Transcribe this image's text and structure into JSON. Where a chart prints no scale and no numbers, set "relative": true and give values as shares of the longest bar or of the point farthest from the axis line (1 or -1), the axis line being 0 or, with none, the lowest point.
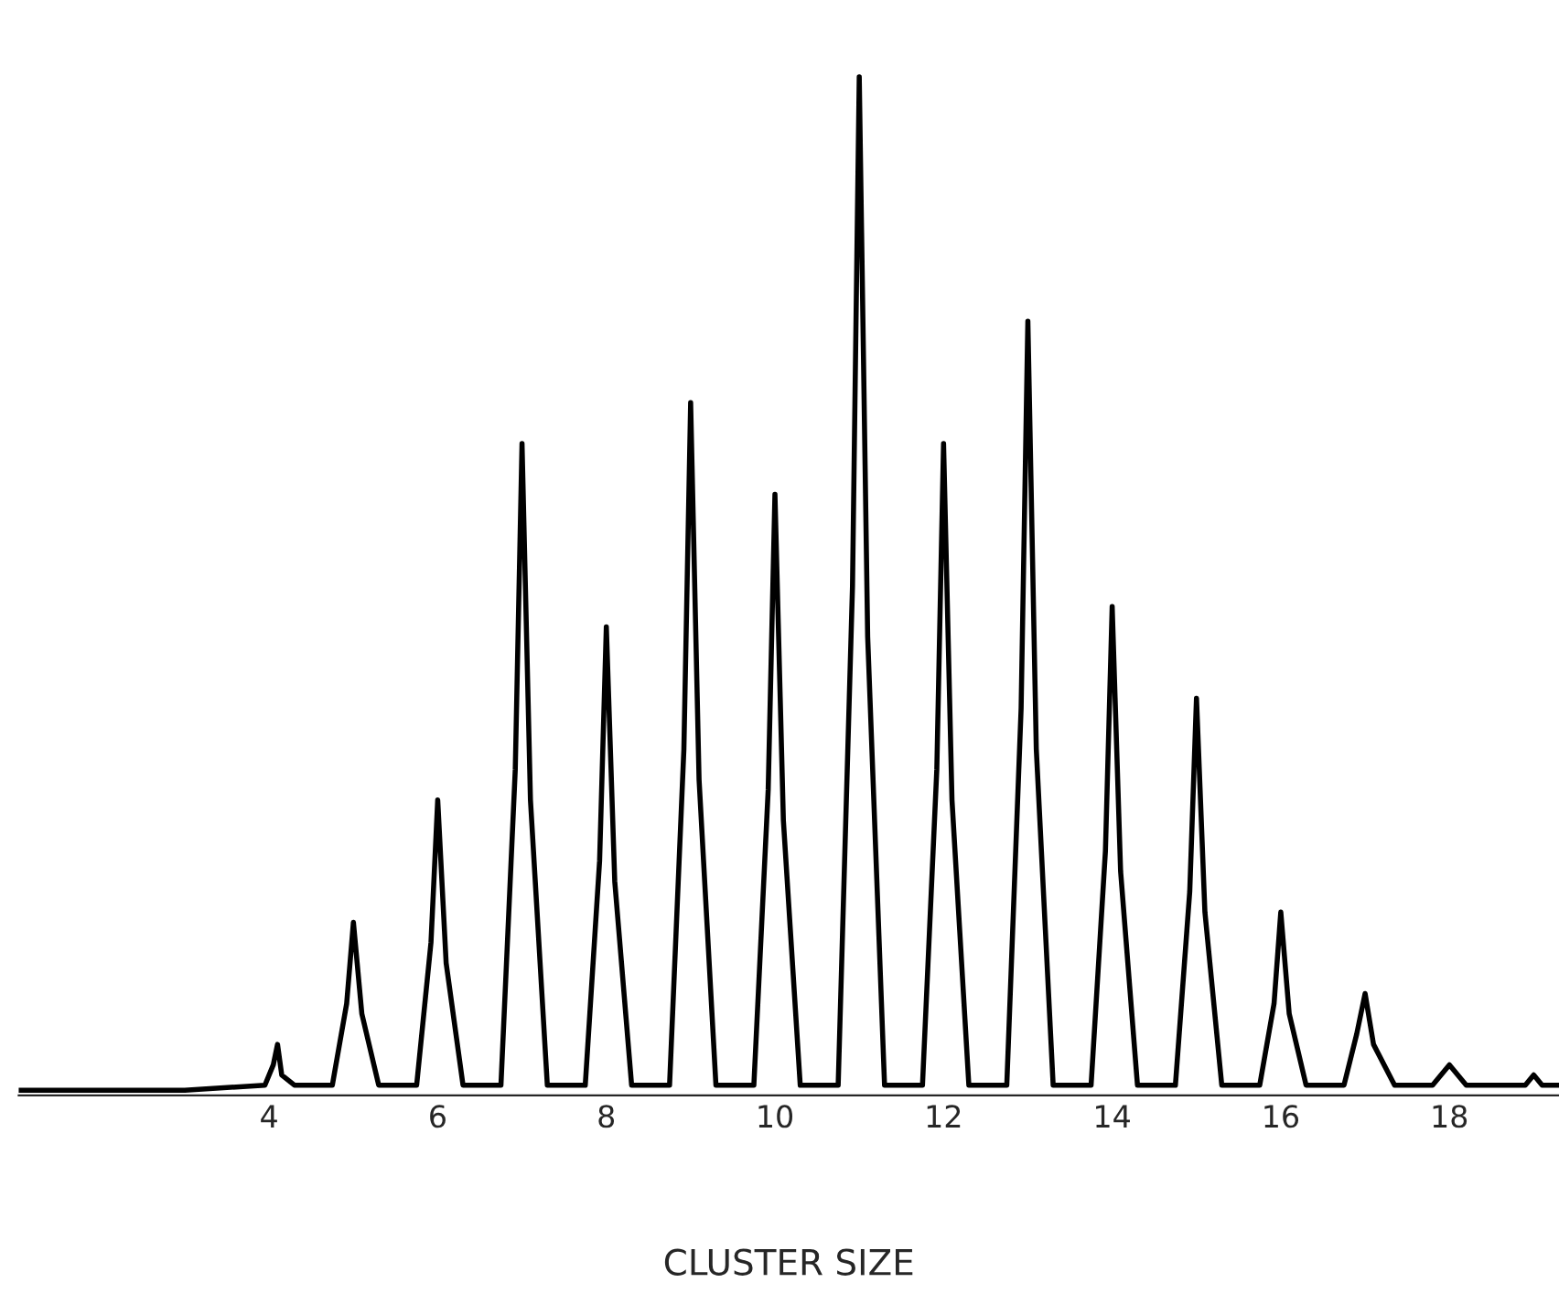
{
  "chart_data": {
    "type": "line",
    "relative": true,
    "xlabel": "CLUSTER SIZE",
    "xlim": [
      1.03,
      19.3
    ],
    "xticks": [
      4,
      6,
      8,
      10,
      12,
      14,
      16,
      18
    ],
    "color": "#000000",
    "x": [
      1.03,
      3.0,
      3.95,
      4.05,
      4.1,
      4.15,
      4.3,
      4.75,
      4.92,
      5.0,
      5.1,
      5.3,
      5.75,
      5.92,
      6.0,
      6.1,
      6.3,
      6.75,
      6.92,
      7.0,
      7.1,
      7.3,
      7.75,
      7.92,
      8.0,
      8.1,
      8.3,
      8.75,
      8.92,
      9.0,
      9.1,
      9.3,
      9.75,
      9.92,
      10.0,
      10.1,
      10.3,
      10.75,
      10.92,
      11.0,
      11.1,
      11.3,
      11.75,
      11.92,
      12.0,
      12.1,
      12.3,
      12.75,
      12.92,
      13.0,
      13.1,
      13.3,
      13.75,
      13.92,
      14.0,
      14.1,
      14.3,
      14.75,
      14.92,
      15.0,
      15.1,
      15.3,
      15.75,
      15.92,
      16.0,
      16.1,
      16.3,
      16.75,
      16.9,
      17.0,
      17.1,
      17.35,
      17.8,
      18.0,
      18.2,
      18.9,
      19.0,
      19.1,
      19.3
    ],
    "values": [
      0.005,
      0.005,
      0.01,
      0.03,
      0.05,
      0.02,
      0.01,
      0.01,
      0.09,
      0.17,
      0.08,
      0.01,
      0.01,
      0.15,
      0.29,
      0.13,
      0.01,
      0.01,
      0.32,
      0.64,
      0.29,
      0.01,
      0.01,
      0.23,
      0.46,
      0.21,
      0.01,
      0.01,
      0.34,
      0.68,
      0.31,
      0.01,
      0.01,
      0.3,
      0.59,
      0.27,
      0.01,
      0.01,
      0.5,
      1,
      0.45,
      0.01,
      0.01,
      0.32,
      0.64,
      0.29,
      0.01,
      0.01,
      0.38,
      0.76,
      0.34,
      0.01,
      0.01,
      0.24,
      0.48,
      0.22,
      0.01,
      0.01,
      0.2,
      0.39,
      0.18,
      0.01,
      0.01,
      0.09,
      0.18,
      0.08,
      0.01,
      0.01,
      0.06,
      0.1,
      0.05,
      0.01,
      0.01,
      0.03,
      0.01,
      0.01,
      0.02,
      0.01,
      0.01
    ]
  }
}
